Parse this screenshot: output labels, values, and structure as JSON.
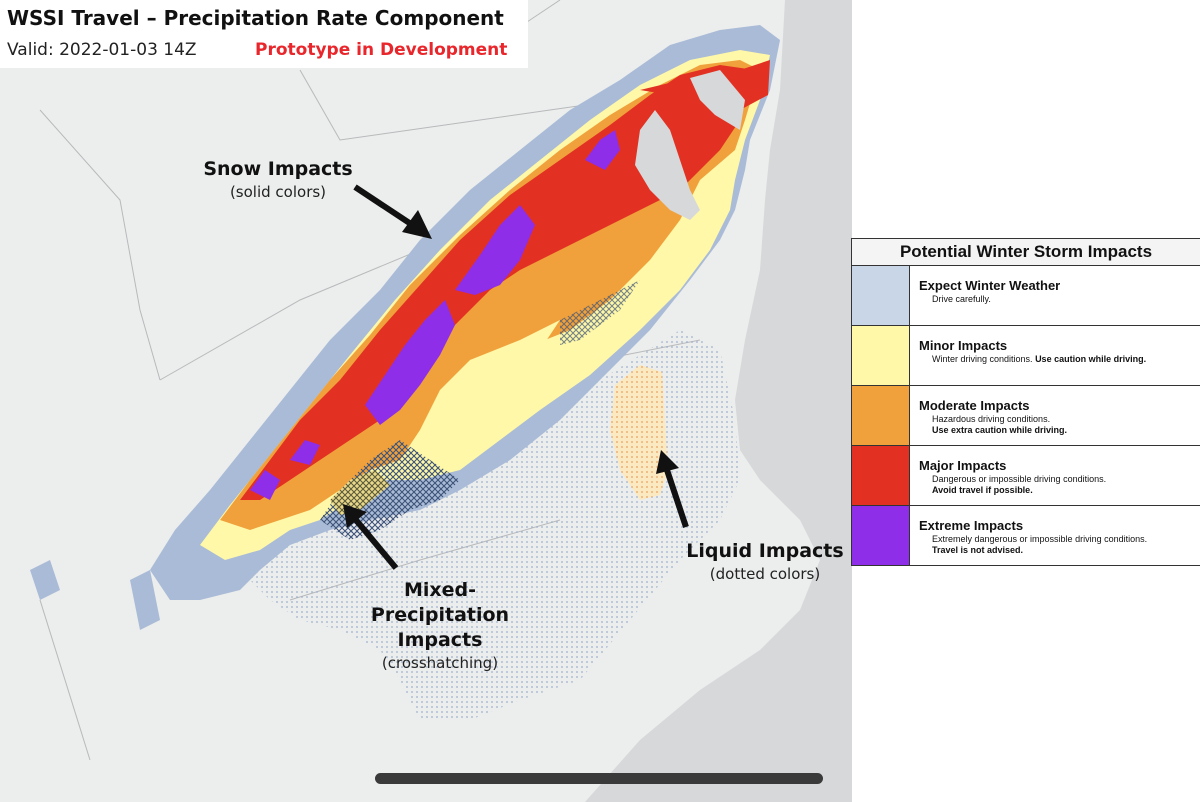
{
  "header": {
    "title": "WSSI Travel – Precipitation Rate Component",
    "valid": "Valid: 2022-01-03 14Z",
    "status": "Prototype in Development"
  },
  "annotations": {
    "snow": {
      "label": "Snow Impacts",
      "sub": "(solid colors)"
    },
    "mixed": {
      "label_line1": "Mixed-",
      "label_line2": "Precipitation",
      "label_line3": "Impacts",
      "sub": "(crosshatching)"
    },
    "liquid": {
      "label": "Liquid Impacts",
      "sub": "(dotted colors)"
    }
  },
  "legend": {
    "title": "Potential Winter Storm Impacts",
    "items": [
      {
        "label": "Expect Winter Weather",
        "desc": "Drive carefully.",
        "emph": "",
        "color": "#c9d6e8"
      },
      {
        "label": "Minor Impacts",
        "desc": "Winter driving conditions.",
        "emph": "Use caution while driving.",
        "color": "#fff8a8"
      },
      {
        "label": "Moderate Impacts",
        "desc": "Hazardous driving conditions.",
        "emph": "Use extra caution while driving.",
        "color": "#f0a13c"
      },
      {
        "label": "Major Impacts",
        "desc": "Dangerous or impossible driving conditions.",
        "emph": "Avoid travel if possible.",
        "color": "#e23122"
      },
      {
        "label": "Extreme Impacts",
        "desc": "Extremely dangerous or impossible driving conditions.",
        "emph": "Travel is not advised.",
        "color": "#8e2ee8"
      }
    ]
  },
  "colors": {
    "land": "#eceded",
    "ocean": "#d7d8d9",
    "winter": "#a9bbd6",
    "minor": "#fff8a8",
    "moderate": "#f0a13c",
    "major": "#e23122",
    "extreme": "#8e2ee8",
    "liquid_minor": "#fbe9c2"
  }
}
